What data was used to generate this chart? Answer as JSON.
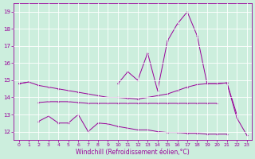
{
  "xlabel": "Windchill (Refroidissement éolien,°C)",
  "bg_color": "#cceedd",
  "line_color": "#990099",
  "grid_color": "#ffffff",
  "x_values": [
    0,
    1,
    2,
    3,
    4,
    5,
    6,
    7,
    8,
    9,
    10,
    11,
    12,
    13,
    14,
    15,
    16,
    17,
    18,
    19,
    20,
    21,
    22,
    23
  ],
  "line_top": [
    14.8,
    14.9,
    14.7,
    14.6,
    14.5,
    14.4,
    14.3,
    14.2,
    14.1,
    14.0,
    14.0,
    13.95,
    13.9,
    14.0,
    14.1,
    14.2,
    14.4,
    14.6,
    14.75,
    14.8,
    14.8,
    14.85,
    13.0,
    null
  ],
  "line_mid": [
    null,
    null,
    13.7,
    13.75,
    13.75,
    13.75,
    13.7,
    13.65,
    13.65,
    13.65,
    13.65,
    13.65,
    13.65,
    13.65,
    13.65,
    13.65,
    13.65,
    13.65,
    13.65,
    13.65,
    13.65,
    null,
    null,
    null
  ],
  "line_bot": [
    null,
    null,
    12.6,
    12.9,
    12.5,
    12.5,
    13.0,
    12.0,
    12.5,
    12.45,
    12.3,
    12.2,
    12.1,
    12.1,
    12.0,
    11.95,
    11.95,
    11.9,
    11.9,
    11.85,
    11.85,
    11.85,
    null,
    null
  ],
  "line_spiky": [
    14.8,
    14.9,
    null,
    null,
    null,
    null,
    null,
    null,
    null,
    null,
    14.8,
    15.5,
    15.0,
    16.6,
    14.4,
    17.3,
    18.3,
    19.0,
    17.6,
    14.8,
    14.8,
    14.85,
    12.8,
    11.8
  ],
  "ylim": [
    11.5,
    19.5
  ],
  "xlim": [
    -0.5,
    23.5
  ],
  "yticks": [
    12,
    13,
    14,
    15,
    16,
    17,
    18,
    19
  ],
  "xticks": [
    0,
    1,
    2,
    3,
    4,
    5,
    6,
    7,
    8,
    9,
    10,
    11,
    12,
    13,
    14,
    15,
    16,
    17,
    18,
    19,
    20,
    21,
    22,
    23
  ]
}
